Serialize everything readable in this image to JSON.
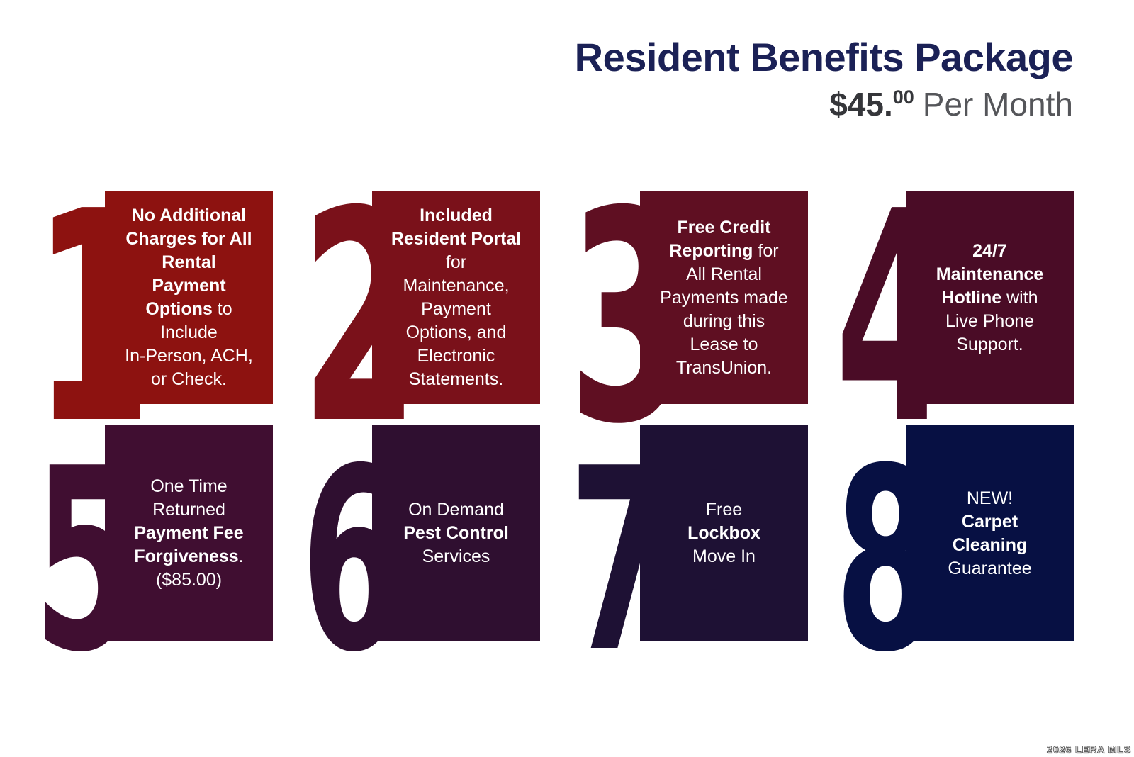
{
  "header": {
    "title": "Resident Benefits Package",
    "price_main": "$45.",
    "price_sup": "00",
    "price_suffix": "Per Month",
    "title_color": "#1b2156",
    "price_color": "#35363a",
    "price_suffix_color": "#55565a"
  },
  "cards": [
    {
      "number": "1",
      "color": "#8d1210",
      "lines": [
        [
          {
            "t": "No Additional",
            "b": true
          }
        ],
        [
          {
            "t": "Charges for All",
            "b": true
          }
        ],
        [
          {
            "t": "Rental",
            "b": true
          }
        ],
        [
          {
            "t": "Payment",
            "b": true
          }
        ],
        [
          {
            "t": "Options",
            "b": true
          },
          {
            "t": " to",
            "b": false
          }
        ],
        [
          {
            "t": "Include",
            "b": false
          }
        ],
        [
          {
            "t": "In-Person, ACH,",
            "b": false
          }
        ],
        [
          {
            "t": "or Check.",
            "b": false
          }
        ]
      ]
    },
    {
      "number": "2",
      "color": "#7a111a",
      "lines": [
        [
          {
            "t": "Included",
            "b": true
          }
        ],
        [
          {
            "t": "Resident Portal",
            "b": true
          }
        ],
        [
          {
            "t": "for",
            "b": false
          }
        ],
        [
          {
            "t": "Maintenance,",
            "b": false
          }
        ],
        [
          {
            "t": "Payment",
            "b": false
          }
        ],
        [
          {
            "t": "Options, and",
            "b": false
          }
        ],
        [
          {
            "t": "Electronic",
            "b": false
          }
        ],
        [
          {
            "t": "Statements.",
            "b": false
          }
        ]
      ]
    },
    {
      "number": "3",
      "color": "#5f0f22",
      "lines": [
        [
          {
            "t": "Free Credit",
            "b": true
          }
        ],
        [
          {
            "t": "Reporting",
            "b": true
          },
          {
            "t": " for",
            "b": false
          }
        ],
        [
          {
            "t": "All Rental",
            "b": false
          }
        ],
        [
          {
            "t": "Payments made",
            "b": false
          }
        ],
        [
          {
            "t": "during this",
            "b": false
          }
        ],
        [
          {
            "t": "Lease to",
            "b": false
          }
        ],
        [
          {
            "t": "TransUnion.",
            "b": false
          }
        ]
      ]
    },
    {
      "number": "4",
      "color": "#4a0c26",
      "lines": [
        [
          {
            "t": "24/7",
            "b": true
          }
        ],
        [
          {
            "t": "Maintenance",
            "b": true
          }
        ],
        [
          {
            "t": "Hotline",
            "b": true
          },
          {
            "t": " with",
            "b": false
          }
        ],
        [
          {
            "t": "Live Phone",
            "b": false
          }
        ],
        [
          {
            "t": "Support.",
            "b": false
          }
        ]
      ]
    },
    {
      "number": "5",
      "color": "#400e31",
      "lines": [
        [
          {
            "t": "One Time",
            "b": false
          }
        ],
        [
          {
            "t": "Returned",
            "b": false
          }
        ],
        [
          {
            "t": "Payment Fee",
            "b": true
          }
        ],
        [
          {
            "t": "Forgiveness",
            "b": true
          },
          {
            "t": ".",
            "b": false
          }
        ],
        [
          {
            "t": "($85.00)",
            "b": false
          }
        ]
      ]
    },
    {
      "number": "6",
      "color": "#2f0f30",
      "lines": [
        [
          {
            "t": "On Demand",
            "b": false
          }
        ],
        [
          {
            "t": "Pest Control",
            "b": true
          }
        ],
        [
          {
            "t": "Services",
            "b": false
          }
        ]
      ]
    },
    {
      "number": "7",
      "color": "#1e1134",
      "lines": [
        [
          {
            "t": "Free",
            "b": false
          }
        ],
        [
          {
            "t": "Lockbox",
            "b": true
          }
        ],
        [
          {
            "t": "Move In",
            "b": false
          }
        ]
      ]
    },
    {
      "number": "8",
      "color": "#071043",
      "lines": [
        [
          {
            "t": "NEW!",
            "b": false
          }
        ],
        [
          {
            "t": "Carpet",
            "b": true
          }
        ],
        [
          {
            "t": "Cleaning",
            "b": true
          }
        ],
        [
          {
            "t": "Guarantee",
            "b": false
          }
        ]
      ]
    }
  ],
  "watermark": "2026 LERA MLS"
}
